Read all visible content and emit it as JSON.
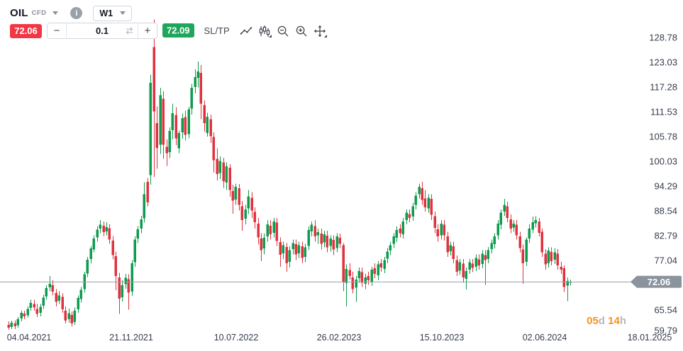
{
  "header": {
    "symbol": "OIL",
    "instrument_type": "CFD",
    "info_glyph": "i",
    "timeframe": "W1"
  },
  "trade_panel": {
    "sell_price": "72.06",
    "buy_price": "72.09",
    "decrease_label": "−",
    "increase_label": "+",
    "volume": "0.1",
    "sltp_label": "SL/TP"
  },
  "icons": {
    "symbol_caret": "caret-down",
    "timeframe_caret": "caret-down",
    "volume_sync": "sync-arrows",
    "chart_line": "line-chart",
    "chart_candles": "candlesticks",
    "zoom_out": "magnifier-minus",
    "zoom_in": "magnifier-plus",
    "pan": "move-arrows"
  },
  "current_price_line": {
    "value": "72.06",
    "countdown": {
      "days": "05",
      "days_unit": "d",
      "hours": "14",
      "hours_unit": "h"
    }
  },
  "colors": {
    "candle_up": "#0d9b4d",
    "candle_down": "#e0323e",
    "sell_badge": "#f23645",
    "buy_badge": "#1ea65b",
    "price_line": "#9a9ea8",
    "price_tag_bg": "#8b939c",
    "price_tag_text": "#ffffff",
    "axis_text": "#363c4e",
    "countdown_orange": "#f7931a"
  },
  "chart_data": {
    "type": "candlestick",
    "symbol": "OIL",
    "timeframe": "W1",
    "grid": false,
    "y_axis_ticks": [
      128.78,
      123.03,
      117.28,
      111.53,
      105.78,
      100.03,
      94.29,
      88.54,
      82.79,
      77.04,
      65.54,
      59.79
    ],
    "x_axis_dates": [
      "04.04.2021",
      "21.11.2021",
      "10.07.2022",
      "26.02.2023",
      "15.10.2023",
      "02.06.2024",
      "18.01.2025"
    ],
    "current_price": 72.06,
    "candles": [
      [
        62.1,
        62.9,
        60.9,
        61.4
      ],
      [
        61.6,
        63.1,
        61.1,
        62.6
      ],
      [
        62.4,
        63.1,
        61.1,
        61.8
      ],
      [
        62.0,
        63.9,
        61.4,
        63.4
      ],
      [
        63.6,
        65.4,
        62.9,
        64.9
      ],
      [
        64.7,
        65.4,
        63.4,
        64.1
      ],
      [
        64.3,
        66.4,
        63.8,
        65.8
      ],
      [
        66.0,
        67.9,
        65.4,
        67.2
      ],
      [
        66.9,
        67.9,
        65.4,
        66.1
      ],
      [
        65.8,
        66.9,
        63.9,
        64.6
      ],
      [
        64.9,
        66.9,
        64.1,
        66.3
      ],
      [
        66.5,
        69.1,
        65.8,
        68.4
      ],
      [
        68.7,
        71.3,
        67.9,
        70.6
      ],
      [
        70.8,
        73.4,
        69.9,
        71.6
      ],
      [
        71.3,
        72.4,
        68.9,
        69.8
      ],
      [
        69.5,
        70.4,
        66.4,
        67.4
      ],
      [
        67.7,
        69.9,
        66.9,
        68.9
      ],
      [
        68.6,
        69.4,
        64.9,
        65.7
      ],
      [
        65.4,
        66.4,
        62.4,
        63.1
      ],
      [
        63.4,
        65.9,
        62.6,
        64.8
      ],
      [
        64.4,
        65.1,
        61.7,
        62.4
      ],
      [
        62.7,
        66.1,
        62.1,
        65.4
      ],
      [
        65.7,
        68.9,
        64.9,
        68.3
      ],
      [
        68.1,
        70.9,
        67.3,
        70.2
      ],
      [
        70.4,
        74.4,
        69.6,
        73.8
      ],
      [
        74.0,
        77.9,
        73.2,
        77.2
      ],
      [
        77.4,
        80.4,
        76.4,
        79.8
      ],
      [
        79.6,
        82.9,
        78.9,
        82.1
      ],
      [
        82.4,
        84.9,
        81.4,
        84.2
      ],
      [
        84.4,
        86.4,
        83.4,
        85.3
      ],
      [
        85.1,
        86.1,
        82.6,
        83.6
      ],
      [
        83.8,
        85.9,
        82.9,
        84.8
      ],
      [
        84.5,
        85.4,
        80.9,
        81.9
      ],
      [
        81.6,
        82.7,
        77.3,
        78.3
      ],
      [
        78.0,
        79.1,
        70.1,
        73.4
      ],
      [
        73.1,
        74.2,
        64.6,
        68.2
      ],
      [
        68.5,
        72.4,
        67.5,
        71.3
      ],
      [
        71.5,
        73.9,
        70.5,
        73.0
      ],
      [
        72.7,
        73.8,
        65.6,
        69.6
      ],
      [
        69.8,
        77.1,
        68.8,
        76.4
      ],
      [
        76.6,
        82.6,
        75.6,
        81.9
      ],
      [
        82.1,
        85.0,
        81.1,
        84.3
      ],
      [
        84.4,
        87.4,
        83.4,
        86.6
      ],
      [
        86.8,
        95.2,
        85.8,
        92.4
      ],
      [
        95.3,
        96.2,
        89.6,
        90.5
      ],
      [
        96.8,
        120.2,
        94.6,
        118.3
      ],
      [
        126.6,
        133.0,
        96.4,
        111.6
      ],
      [
        108.9,
        112.8,
        98.3,
        103.2
      ],
      [
        103.9,
        117.1,
        101.8,
        115.4
      ],
      [
        114.6,
        116.3,
        100.6,
        103.9
      ],
      [
        103.4,
        105.1,
        99.0,
        101.9
      ],
      [
        102.2,
        107.9,
        100.8,
        107.1
      ],
      [
        107.3,
        113.4,
        105.1,
        111.2
      ],
      [
        110.8,
        112.6,
        103.8,
        105.4
      ],
      [
        103.1,
        107.2,
        101.9,
        106.6
      ],
      [
        106.8,
        111.1,
        105.3,
        110.1
      ],
      [
        110.3,
        111.8,
        104.9,
        106.2
      ],
      [
        106.4,
        112.7,
        105.4,
        112.1
      ],
      [
        112.3,
        118.0,
        110.9,
        117.1
      ],
      [
        117.3,
        121.4,
        115.8,
        119.6
      ],
      [
        119.4,
        123.2,
        117.2,
        120.9
      ],
      [
        120.6,
        122.4,
        109.8,
        113.4
      ],
      [
        113.1,
        114.2,
        106.9,
        108.9
      ],
      [
        106.6,
        111.3,
        105.8,
        110.4
      ],
      [
        109.8,
        110.9,
        104.3,
        105.9
      ],
      [
        105.7,
        106.8,
        97.4,
        100.3
      ],
      [
        100.6,
        103.1,
        95.6,
        97.1
      ],
      [
        97.3,
        101.2,
        95.9,
        100.1
      ],
      [
        99.8,
        100.9,
        93.9,
        95.4
      ],
      [
        95.1,
        99.8,
        93.4,
        98.9
      ],
      [
        98.6,
        99.4,
        91.8,
        93.4
      ],
      [
        93.1,
        94.6,
        87.9,
        90.9
      ],
      [
        91.2,
        94.9,
        89.9,
        94.1
      ],
      [
        93.8,
        94.8,
        88.6,
        89.9
      ],
      [
        89.6,
        90.8,
        83.9,
        86.4
      ],
      [
        86.7,
        89.9,
        85.4,
        88.9
      ],
      [
        89.1,
        93.4,
        87.8,
        91.9
      ],
      [
        91.6,
        92.9,
        86.9,
        88.6
      ],
      [
        88.3,
        89.4,
        84.4,
        85.9
      ],
      [
        85.6,
        86.9,
        80.7,
        82.4
      ],
      [
        82.1,
        83.4,
        76.9,
        79.4
      ],
      [
        79.8,
        83.3,
        78.4,
        82.3
      ],
      [
        82.6,
        86.4,
        81.4,
        85.4
      ],
      [
        85.1,
        86.3,
        81.9,
        83.1
      ],
      [
        83.4,
        86.9,
        82.4,
        86.1
      ],
      [
        85.8,
        86.9,
        80.4,
        81.6
      ],
      [
        81.3,
        82.4,
        75.6,
        78.4
      ],
      [
        78.7,
        81.4,
        77.4,
        80.6
      ],
      [
        80.2,
        81.1,
        74.4,
        76.4
      ],
      [
        76.7,
        80.3,
        75.4,
        79.4
      ],
      [
        79.7,
        81.9,
        78.4,
        81.1
      ],
      [
        80.8,
        81.9,
        77.1,
        78.4
      ],
      [
        78.7,
        81.4,
        77.6,
        80.6
      ],
      [
        80.3,
        81.4,
        76.4,
        77.6
      ],
      [
        77.9,
        80.9,
        76.6,
        80.1
      ],
      [
        80.4,
        84.9,
        79.4,
        84.1
      ],
      [
        83.8,
        86.1,
        82.6,
        85.3
      ],
      [
        85.0,
        86.4,
        81.4,
        82.6
      ],
      [
        82.9,
        84.4,
        80.9,
        83.6
      ],
      [
        83.3,
        84.4,
        79.6,
        80.9
      ],
      [
        81.2,
        83.9,
        80.1,
        83.1
      ],
      [
        82.8,
        83.9,
        78.9,
        80.1
      ],
      [
        80.4,
        82.9,
        79.1,
        82.1
      ],
      [
        81.8,
        82.9,
        78.3,
        79.6
      ],
      [
        79.9,
        83.4,
        78.9,
        82.6
      ],
      [
        82.3,
        83.3,
        79.9,
        80.9
      ],
      [
        80.6,
        81.1,
        69.9,
        72.1
      ],
      [
        71.8,
        76.1,
        66.4,
        75.1
      ],
      [
        74.8,
        76.4,
        72.6,
        73.4
      ],
      [
        73.1,
        74.4,
        69.4,
        70.4
      ],
      [
        70.7,
        73.4,
        67.4,
        72.6
      ],
      [
        72.9,
        75.4,
        71.9,
        74.6
      ],
      [
        74.3,
        75.4,
        70.9,
        71.9
      ],
      [
        71.6,
        73.9,
        70.4,
        73.1
      ],
      [
        73.4,
        74.4,
        71.4,
        72.4
      ],
      [
        72.1,
        75.6,
        71.1,
        74.9
      ],
      [
        75.2,
        76.4,
        72.9,
        73.9
      ],
      [
        73.6,
        76.9,
        72.4,
        76.1
      ],
      [
        76.4,
        77.4,
        74.4,
        75.4
      ],
      [
        75.1,
        77.9,
        74.1,
        77.1
      ],
      [
        77.4,
        79.9,
        76.4,
        79.1
      ],
      [
        79.3,
        81.4,
        78.3,
        80.6
      ],
      [
        80.9,
        83.4,
        79.9,
        82.6
      ],
      [
        82.3,
        84.9,
        81.3,
        84.1
      ],
      [
        84.4,
        85.4,
        82.4,
        83.4
      ],
      [
        83.1,
        86.9,
        82.1,
        86.1
      ],
      [
        86.4,
        88.9,
        85.4,
        88.1
      ],
      [
        87.8,
        88.9,
        85.9,
        86.9
      ],
      [
        87.2,
        90.4,
        86.2,
        89.6
      ],
      [
        89.9,
        92.9,
        88.9,
        92.1
      ],
      [
        92.4,
        94.9,
        91.4,
        94.1
      ],
      [
        93.8,
        95.3,
        89.9,
        91.1
      ],
      [
        91.4,
        93.4,
        88.4,
        89.4
      ],
      [
        89.1,
        92.4,
        88.1,
        91.6
      ],
      [
        91.3,
        92.4,
        86.4,
        87.6
      ],
      [
        87.3,
        88.4,
        83.4,
        84.6
      ],
      [
        84.3,
        85.4,
        81.4,
        82.6
      ],
      [
        82.9,
        86.4,
        81.9,
        85.6
      ],
      [
        85.3,
        86.4,
        81.6,
        82.9
      ],
      [
        82.6,
        83.7,
        77.9,
        78.9
      ],
      [
        79.2,
        81.4,
        78.2,
        80.6
      ],
      [
        80.3,
        81.4,
        76.4,
        77.4
      ],
      [
        77.1,
        78.2,
        73.4,
        74.4
      ],
      [
        74.7,
        77.4,
        73.7,
        76.6
      ],
      [
        76.3,
        77.4,
        71.9,
        73.1
      ],
      [
        72.8,
        75.4,
        70.3,
        74.6
      ],
      [
        74.9,
        77.4,
        73.9,
        76.6
      ],
      [
        76.3,
        77.4,
        74.3,
        75.3
      ],
      [
        75.6,
        78.4,
        74.6,
        77.6
      ],
      [
        77.3,
        78.4,
        74.9,
        75.9
      ],
      [
        76.2,
        79.4,
        75.2,
        78.6
      ],
      [
        78.3,
        79.4,
        71.4,
        77.1
      ],
      [
        77.4,
        80.2,
        76.4,
        79.4
      ],
      [
        79.7,
        81.9,
        78.7,
        81.1
      ],
      [
        80.8,
        83.4,
        79.8,
        82.6
      ],
      [
        82.9,
        86.4,
        81.9,
        85.6
      ],
      [
        85.3,
        88.9,
        84.3,
        88.1
      ],
      [
        88.4,
        91.3,
        87.4,
        89.9
      ],
      [
        89.6,
        90.7,
        85.9,
        86.9
      ],
      [
        86.6,
        87.7,
        83.4,
        84.4
      ],
      [
        84.7,
        86.4,
        83.7,
        85.6
      ],
      [
        85.3,
        86.4,
        81.9,
        82.9
      ],
      [
        82.6,
        83.7,
        78.9,
        79.9
      ],
      [
        79.6,
        80.7,
        71.6,
        76.4
      ],
      [
        76.7,
        82.4,
        75.7,
        81.9
      ],
      [
        82.1,
        85.4,
        81.1,
        84.4
      ],
      [
        84.2,
        87.2,
        83.4,
        85.9
      ],
      [
        85.7,
        87.3,
        84.7,
        86.4
      ],
      [
        86.1,
        86.9,
        82.6,
        83.4
      ],
      [
        83.7,
        84.4,
        77.9,
        78.9
      ],
      [
        78.6,
        79.7,
        74.9,
        76.1
      ],
      [
        76.4,
        80.1,
        75.4,
        79.3
      ],
      [
        79.0,
        80.1,
        75.9,
        76.9
      ],
      [
        77.2,
        79.9,
        76.2,
        78.9
      ],
      [
        78.6,
        79.7,
        74.9,
        75.9
      ],
      [
        75.6,
        76.7,
        73.9,
        74.9
      ],
      [
        75.2,
        75.9,
        69.7,
        70.9
      ],
      [
        71.2,
        73.1,
        67.6,
        72.3
      ],
      [
        71.9,
        72.6,
        71.2,
        72.06
      ]
    ]
  }
}
